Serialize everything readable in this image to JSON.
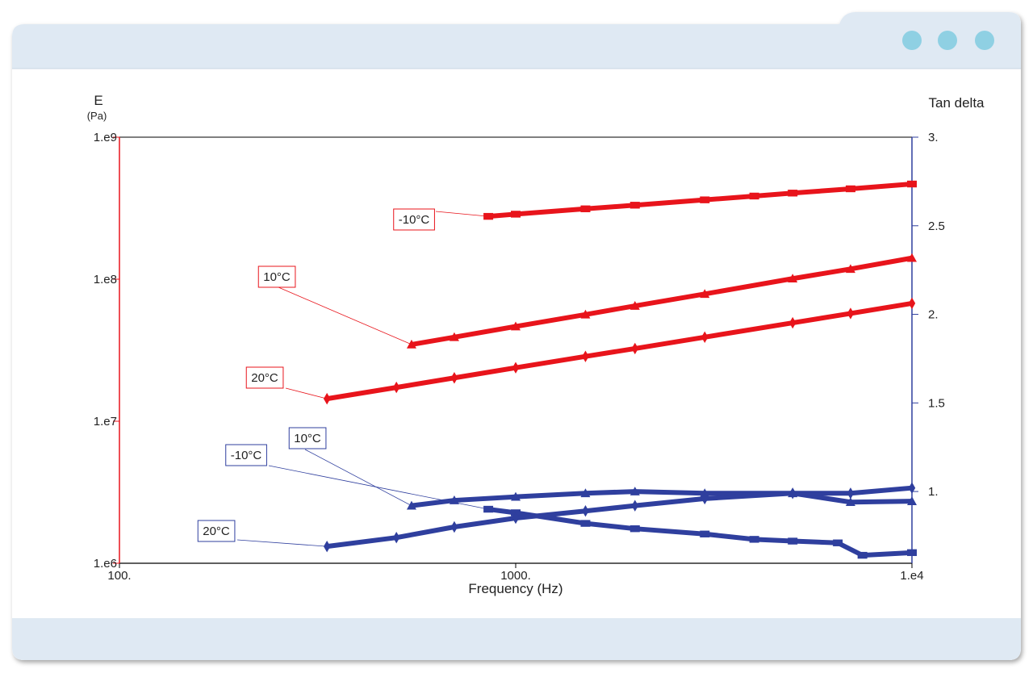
{
  "chart_data": {
    "type": "line",
    "x_label": "Frequency (Hz)",
    "y_label": "E",
    "y_unit": "(Pa)",
    "y2_label": "Tan delta",
    "xscale": "log",
    "yscale": "log",
    "xlim": [
      100,
      10000
    ],
    "xticks": [
      {
        "value": 100,
        "label": "100."
      },
      {
        "value": 1000,
        "label": "1000."
      },
      {
        "value": 10000,
        "label": "1.e4"
      }
    ],
    "ylim": [
      1000000,
      1000000000
    ],
    "yticks": [
      {
        "value": 1000000,
        "label": "1.e6"
      },
      {
        "value": 10000000,
        "label": "1.e7"
      },
      {
        "value": 100000000,
        "label": "1.e8"
      },
      {
        "value": 1000000000,
        "label": "1.e9"
      }
    ],
    "y2lim": [
      0.595,
      3
    ],
    "y2ticks": [
      {
        "value": 1,
        "label": "1."
      },
      {
        "value": 1.5,
        "label": "1.5"
      },
      {
        "value": 2,
        "label": "2."
      },
      {
        "value": 2.5,
        "label": "2.5"
      },
      {
        "value": 3,
        "label": "3."
      }
    ],
    "y_axis_color": "#e8141b",
    "y2_axis_color": "#2f3f9e",
    "series": [
      {
        "name": "-10°C",
        "color": "#e8141b",
        "marker": "square",
        "axis": "y",
        "x": [
          853,
          1000,
          1500,
          2000,
          3000,
          4000,
          5000,
          7000,
          10000
        ],
        "values": [
          277000000,
          287000000,
          313000000,
          332000000,
          362000000,
          385000000,
          404000000,
          433000000,
          468000000
        ]
      },
      {
        "name": "10°C",
        "color": "#e8141b",
        "marker": "triangle",
        "axis": "y",
        "x": [
          546,
          700,
          1000,
          1500,
          2000,
          3000,
          5000,
          7000,
          10000
        ],
        "values": [
          34700000,
          39100000,
          46500000,
          56400000,
          64900000,
          78700000,
          101000000,
          118000000,
          141000000
        ]
      },
      {
        "name": "20°C",
        "color": "#e8141b",
        "marker": "diamond",
        "axis": "y",
        "x": [
          334,
          500,
          700,
          1000,
          1500,
          2000,
          3000,
          5000,
          7000,
          10000
        ],
        "values": [
          14400000,
          17300000,
          20200000,
          23800000,
          28600000,
          32500000,
          39100000,
          49300000,
          57400000,
          67600000
        ]
      },
      {
        "name": "-10°C",
        "color": "#2f3f9e",
        "marker": "square",
        "axis": "y2",
        "x": [
          853,
          1000,
          1500,
          2000,
          3000,
          4000,
          5000,
          6500,
          7500,
          10000
        ],
        "values": [
          0.9,
          0.88,
          0.82,
          0.79,
          0.76,
          0.73,
          0.72,
          0.71,
          0.64,
          0.655
        ]
      },
      {
        "name": "10°C",
        "color": "#2f3f9e",
        "marker": "triangle",
        "axis": "y2",
        "x": [
          546,
          700,
          1000,
          1500,
          2000,
          3000,
          5000,
          7000,
          10000
        ],
        "values": [
          0.92,
          0.95,
          0.97,
          0.99,
          1.0,
          0.99,
          0.99,
          0.94,
          0.945
        ]
      },
      {
        "name": "20°C",
        "color": "#2f3f9e",
        "marker": "diamond",
        "axis": "y2",
        "x": [
          334,
          500,
          700,
          1000,
          1500,
          2000,
          3000,
          5000,
          7000,
          10000
        ],
        "values": [
          0.69,
          0.74,
          0.8,
          0.85,
          0.89,
          0.92,
          0.96,
          0.99,
          0.99,
          1.02
        ]
      }
    ]
  }
}
